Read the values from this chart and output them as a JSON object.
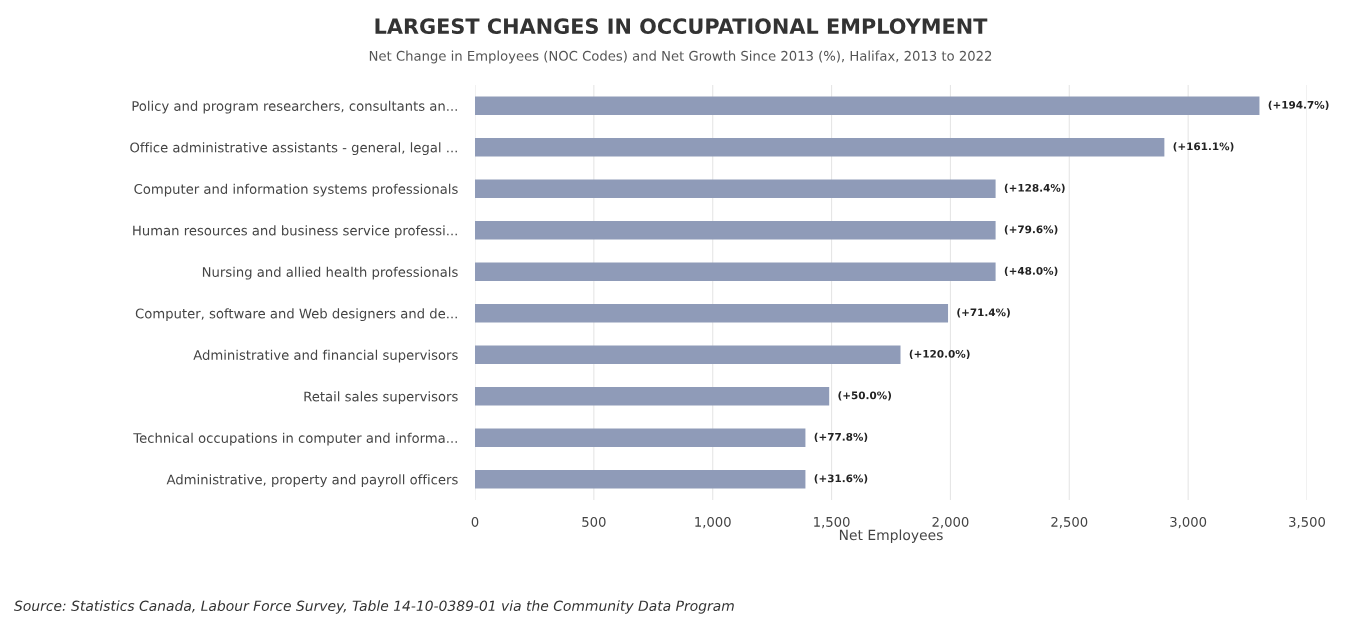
{
  "chart_data": {
    "type": "bar",
    "orientation": "horizontal",
    "title": "LARGEST CHANGES IN OCCUPATIONAL EMPLOYMENT",
    "subtitle": "Net Change in Employees (NOC Codes) and Net Growth Since 2013 (%), Halifax, 2013 to 2022",
    "xlabel": "Net Employees",
    "categories": [
      "Policy and program researchers, consultants an...",
      "Office administrative assistants - general, legal ...",
      "Computer and information systems professionals",
      "Human resources and business service professi...",
      "Nursing and allied health professionals",
      "Computer, software and Web designers and de...",
      "Administrative and financial supervisors",
      "Retail sales supervisors",
      "Technical occupations in computer and informa...",
      "Administrative, property and payroll officers"
    ],
    "values": [
      3300,
      2900,
      2190,
      2190,
      2190,
      1990,
      1790,
      1490,
      1390,
      1390
    ],
    "color": "#8f9bb8",
    "xlim": [
      0,
      3500
    ],
    "xticks": [
      {
        "value": 0,
        "label": "0"
      },
      {
        "value": 500,
        "label": "500"
      },
      {
        "value": 1000,
        "label": "1,000"
      },
      {
        "value": 1500,
        "label": "1,500"
      },
      {
        "value": 2000,
        "label": "2,000"
      },
      {
        "value": 2500,
        "label": "2,500"
      },
      {
        "value": 3000,
        "label": "3,000"
      },
      {
        "value": 3500,
        "label": "3,500"
      }
    ],
    "grid": "x",
    "annotations": [
      {
        "text": "(+194.7%)",
        "x": 3300,
        "y": "Policy and program researchers, consultants an..."
      },
      {
        "text": "(+161.1%)",
        "x": 2900,
        "y": "Office administrative assistants - general, legal ..."
      },
      {
        "text": "(+128.4%)",
        "x": 2190,
        "y": "Computer and information systems professionals"
      },
      {
        "text": "(+79.6%)",
        "x": 2190,
        "y": "Human resources and business service professi..."
      },
      {
        "text": "(+48.0%)",
        "x": 2190,
        "y": "Nursing and allied health professionals"
      },
      {
        "text": "(+71.4%)",
        "x": 1990,
        "y": "Computer, software and Web designers and de..."
      },
      {
        "text": "(+120.0%)",
        "x": 1790,
        "y": "Administrative and financial supervisors"
      },
      {
        "text": "(+50.0%)",
        "x": 1490,
        "y": "Retail sales supervisors"
      },
      {
        "text": "(+77.8%)",
        "x": 1390,
        "y": "Technical occupations in computer and informa..."
      },
      {
        "text": "(+31.6%)",
        "x": 1390,
        "y": "Administrative, property and payroll officers"
      },
      "Source: Statistics Canada, Labour Force Survey, Table 14-10-0389-01 via the Community Data Program"
    ]
  }
}
